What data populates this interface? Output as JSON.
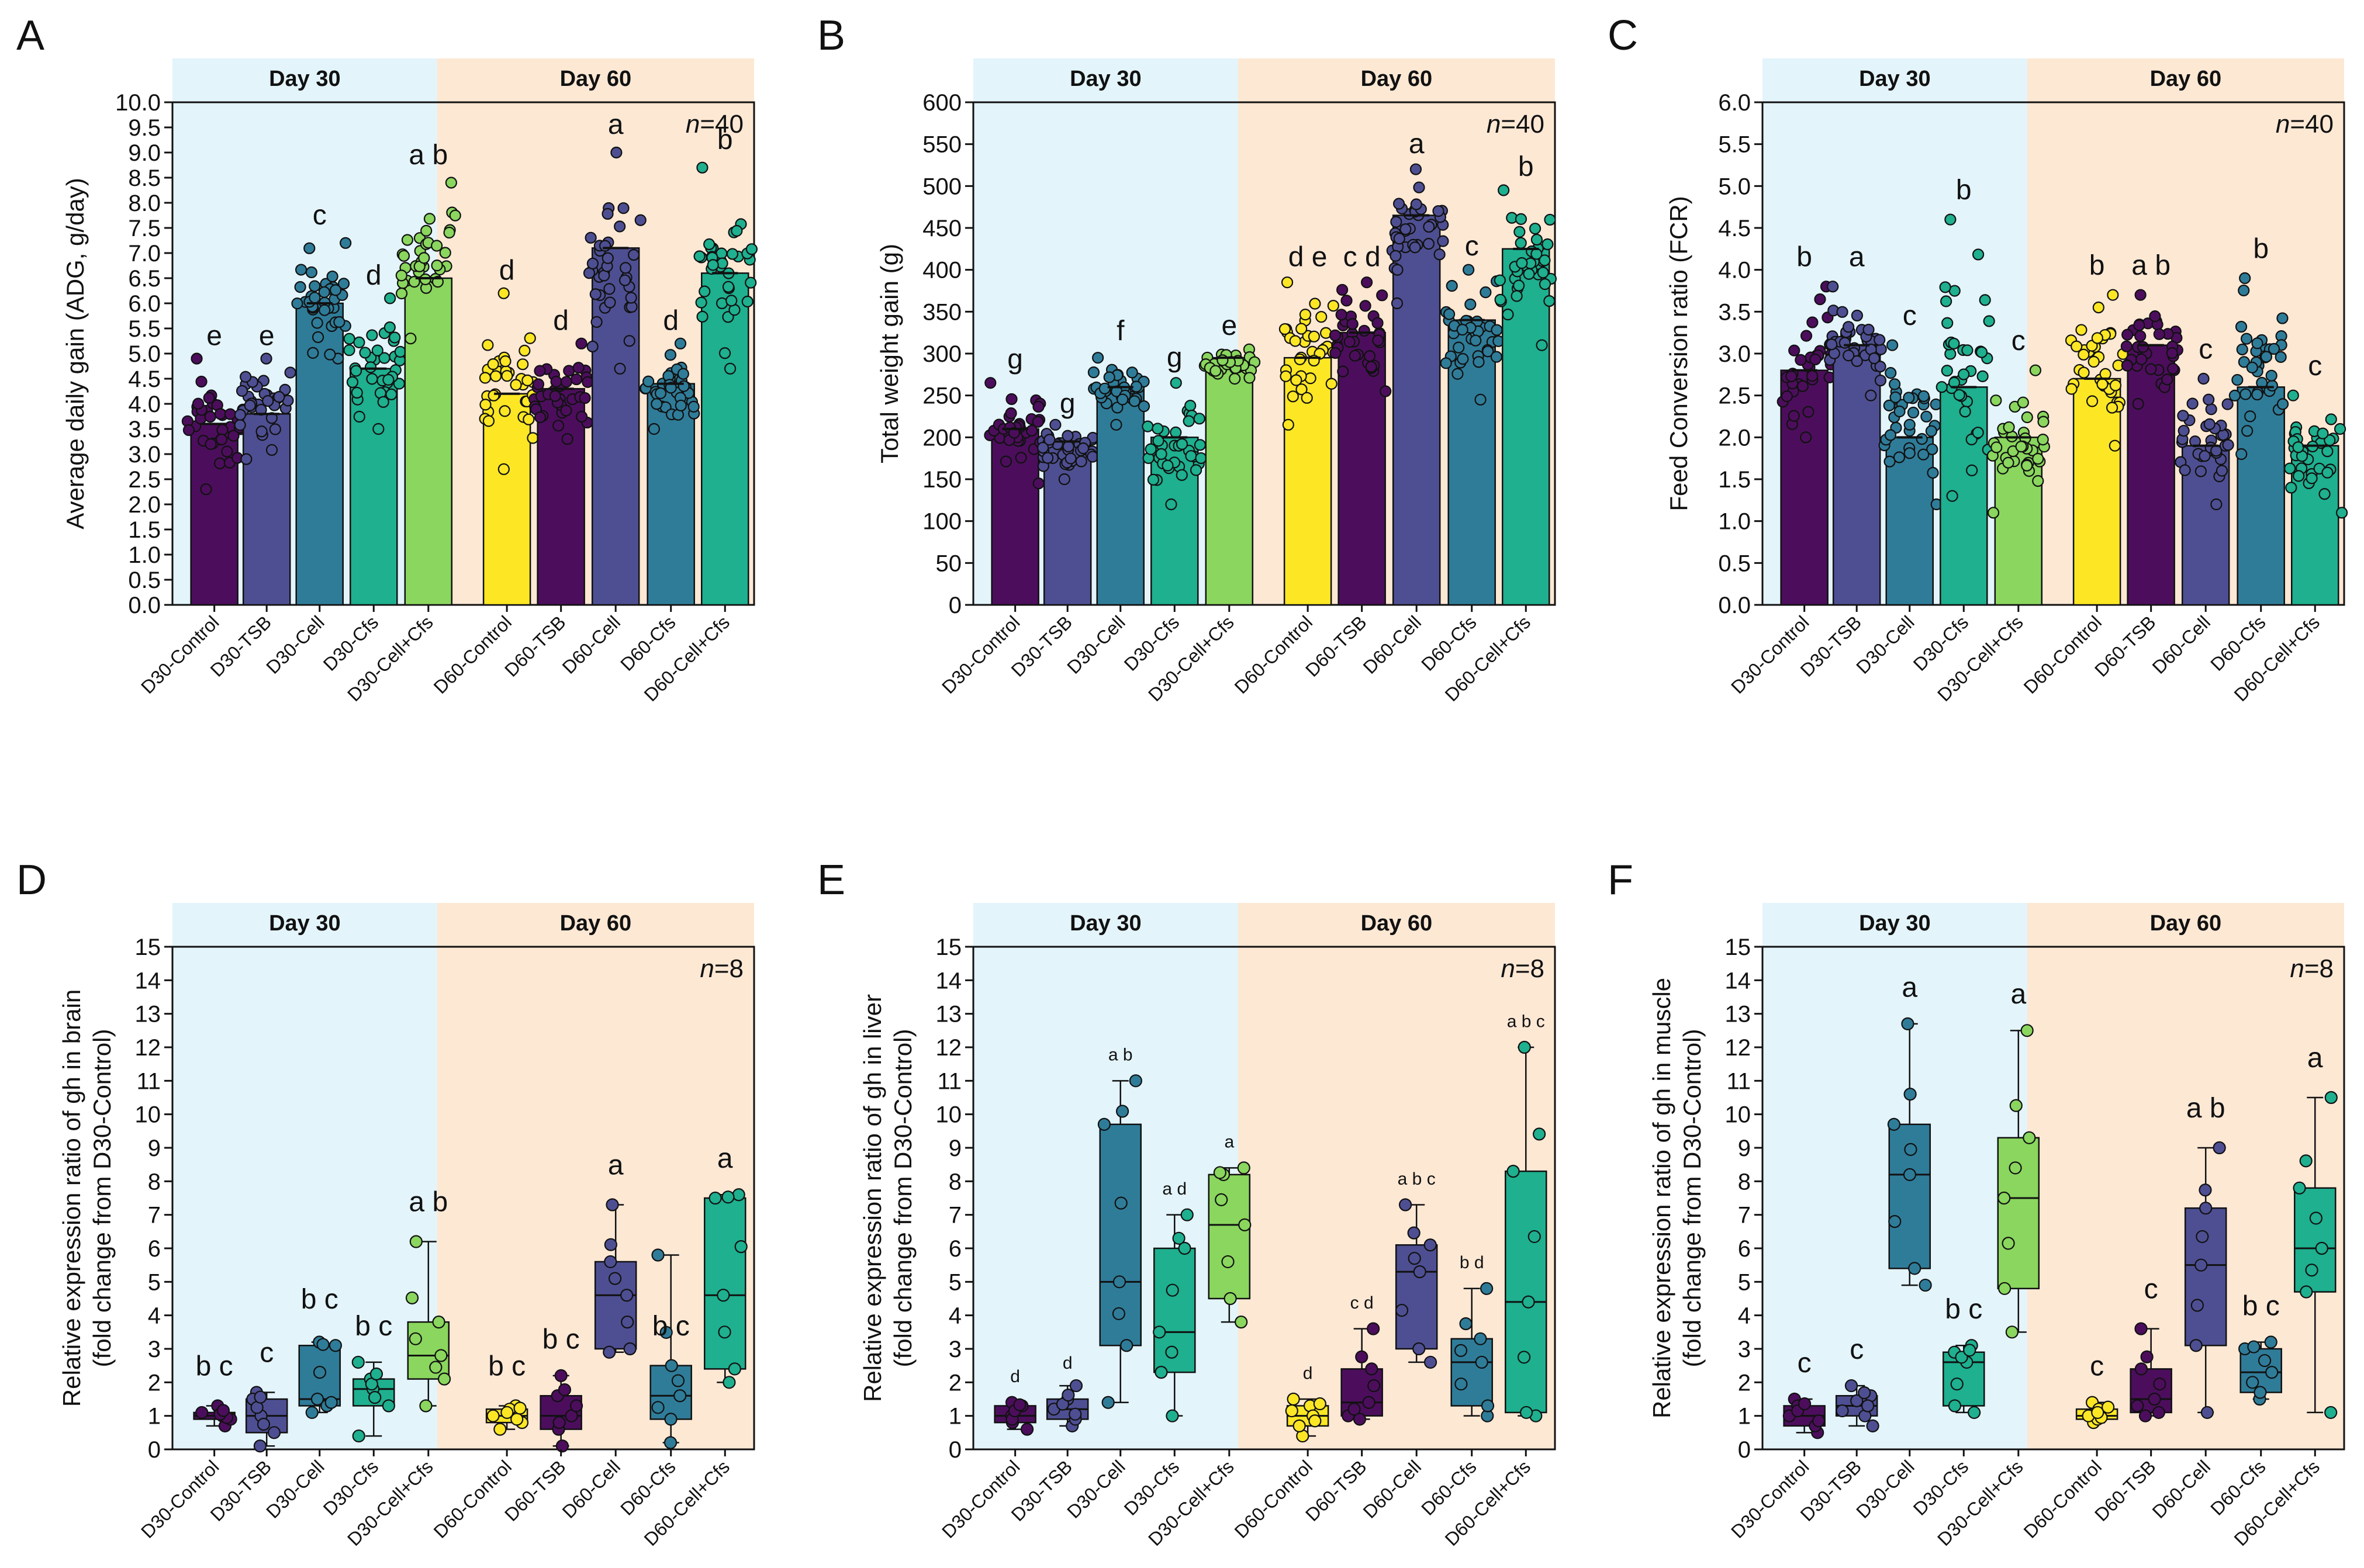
{
  "figure": {
    "panel_labels": [
      "A",
      "B",
      "C",
      "D",
      "E",
      "F"
    ]
  },
  "colors": {
    "day30_bg": "#e3f4fb",
    "day60_bg": "#fde8d4",
    "group_colors": [
      "#4c0e5c",
      "#4e4f92",
      "#2f7c99",
      "#1eb08f",
      "#8ad65e",
      "#fde725",
      "#4c0e5c",
      "#4e4f92",
      "#2f7c99",
      "#1eb08f"
    ]
  },
  "chart_data": [
    {
      "panel": "A",
      "type": "bar",
      "title": "",
      "header_labels": [
        "Day 30",
        "Day 60"
      ],
      "n_label": "n=40",
      "ylabel": "Average daily gain (ADG, g/day)",
      "ylabel_lines": [
        "Average daily gain (ADG, g/day)"
      ],
      "ylim": [
        0,
        10
      ],
      "yticks": [
        0,
        0.5,
        1,
        1.5,
        2,
        2.5,
        3,
        3.5,
        4,
        4.5,
        5,
        5.5,
        6,
        6.5,
        7,
        7.5,
        8,
        8.5,
        9,
        9.5,
        10
      ],
      "ytick_labels": [
        "0.0",
        "0.5",
        "1.0",
        "1.5",
        "2.0",
        "2.5",
        "3.0",
        "3.5",
        "4.0",
        "4.5",
        "5.0",
        "5.5",
        "6.0",
        "6.5",
        "7.0",
        "7.5",
        "8.0",
        "8.5",
        "9.0",
        "9.5",
        "10.0"
      ],
      "categories": [
        "D30-Control",
        "D30-TSB",
        "D30-Cell",
        "D30-Cfs",
        "D30-Cell+Cfs",
        "D60-Control",
        "D60-TSB",
        "D60-Cell",
        "D60-Cfs",
        "D60-Cell+Cfs"
      ],
      "values": [
        3.6,
        3.8,
        6.0,
        4.7,
        6.5,
        4.2,
        4.3,
        7.1,
        4.4,
        6.6
      ],
      "spread": [
        [
          2.3,
          4.9
        ],
        [
          2.9,
          4.9
        ],
        [
          4.9,
          7.2
        ],
        [
          3.5,
          6.1
        ],
        [
          5.3,
          8.4
        ],
        [
          2.7,
          6.2
        ],
        [
          3.3,
          5.2
        ],
        [
          4.7,
          9.0
        ],
        [
          3.5,
          5.2
        ],
        [
          4.7,
          8.7
        ]
      ],
      "letters": [
        "e",
        "e",
        "c",
        "d",
        "a b",
        "d",
        "d",
        "a",
        "d",
        "b"
      ],
      "letter_values": [
        5.1,
        5.1,
        7.5,
        6.3,
        8.7,
        6.4,
        5.4,
        9.3,
        5.4,
        9.0
      ]
    },
    {
      "panel": "B",
      "type": "bar",
      "title": "",
      "header_labels": [
        "Day 30",
        "Day 60"
      ],
      "n_label": "n=40",
      "ylabel": "Total weight gain (g)",
      "ylabel_lines": [
        "Total weight gain (g)"
      ],
      "ylim": [
        0,
        600
      ],
      "yticks": [
        0,
        50,
        100,
        150,
        200,
        250,
        300,
        350,
        400,
        450,
        500,
        550,
        600
      ],
      "ytick_labels": [
        "0",
        "50",
        "100",
        "150",
        "200",
        "250",
        "300",
        "350",
        "400",
        "450",
        "500",
        "550",
        "600"
      ],
      "categories": [
        "D30-Control",
        "D30-TSB",
        "D30-Cell",
        "D30-Cfs",
        "D30-Cell+Cfs",
        "D60-Control",
        "D60-TSB",
        "D60-Cell",
        "D60-Cfs",
        "D60-Cell+Cfs"
      ],
      "values": [
        210,
        195,
        260,
        200,
        295,
        295,
        325,
        465,
        340,
        425
      ],
      "spread": [
        [
          145,
          265
        ],
        [
          150,
          215
        ],
        [
          215,
          295
        ],
        [
          120,
          265
        ],
        [
          270,
          305
        ],
        [
          215,
          385
        ],
        [
          255,
          385
        ],
        [
          360,
          520
        ],
        [
          245,
          400
        ],
        [
          310,
          495
        ]
      ],
      "letters": [
        "g",
        "g",
        "f",
        "g",
        "e",
        "d e",
        "c d",
        "a",
        "c",
        "b"
      ],
      "letter_values": [
        278,
        225,
        312,
        280,
        318,
        400,
        400,
        535,
        413,
        508
      ]
    },
    {
      "panel": "C",
      "type": "bar",
      "title": "",
      "header_labels": [
        "Day 30",
        "Day 60"
      ],
      "n_label": "n=40",
      "ylabel": "Feed Conversion ratio (FCR)",
      "ylabel_lines": [
        "Feed Conversion ratio (FCR)"
      ],
      "ylim": [
        0,
        6
      ],
      "yticks": [
        0,
        0.5,
        1,
        1.5,
        2,
        2.5,
        3,
        3.5,
        4,
        4.5,
        5,
        5.5,
        6
      ],
      "ytick_labels": [
        "0.0",
        "0.5",
        "1.0",
        "1.5",
        "2.0",
        "2.5",
        "3.0",
        "3.5",
        "4.0",
        "4.5",
        "5.0",
        "5.5",
        "6.0"
      ],
      "categories": [
        "D30-Control",
        "D30-TSB",
        "D30-Cell",
        "D30-Cfs",
        "D30-Cell+Cfs",
        "D60-Control",
        "D60-TSB",
        "D60-Cell",
        "D60-Cfs",
        "D60-Cell+Cfs"
      ],
      "values": [
        2.8,
        3.1,
        2.0,
        2.6,
        2.0,
        2.7,
        3.1,
        1.9,
        2.6,
        1.9
      ],
      "spread": [
        [
          2.0,
          3.8
        ],
        [
          2.5,
          3.8
        ],
        [
          1.2,
          3.1
        ],
        [
          1.3,
          4.6
        ],
        [
          1.1,
          2.8
        ],
        [
          1.9,
          3.7
        ],
        [
          2.4,
          3.7
        ],
        [
          1.2,
          2.7
        ],
        [
          1.8,
          3.9
        ],
        [
          1.1,
          2.5
        ]
      ],
      "letters": [
        "b",
        "a",
        "c",
        "b",
        "c",
        "b",
        "a b",
        "c",
        "b",
        "c"
      ],
      "letter_values": [
        4.0,
        4.0,
        3.3,
        4.8,
        3.0,
        3.9,
        3.9,
        2.9,
        4.1,
        2.7
      ]
    },
    {
      "panel": "D",
      "type": "box",
      "title": "",
      "header_labels": [
        "Day 30",
        "Day 60"
      ],
      "n_label": "n=8",
      "ylabel": "Relative expression ratio of gh in brain (fold change from D30-Control)",
      "ylabel_lines": [
        "Relative expression ratio of gh in brain",
        "(fold change from D30-Control)"
      ],
      "ylim": [
        0,
        15
      ],
      "yticks": [
        0,
        1,
        2,
        3,
        4,
        5,
        6,
        7,
        8,
        9,
        10,
        11,
        12,
        13,
        14,
        15
      ],
      "ytick_labels": [
        "0",
        "1",
        "2",
        "3",
        "4",
        "5",
        "6",
        "7",
        "8",
        "9",
        "10",
        "11",
        "12",
        "13",
        "14",
        "15"
      ],
      "categories": [
        "D30-Control",
        "D30-TSB",
        "D30-Cell",
        "D30-Cfs",
        "D30-Cell+Cfs",
        "D60-Control",
        "D60-TSB",
        "D60-Cell",
        "D60-Cfs",
        "D60-Cell+Cfs"
      ],
      "boxes": [
        {
          "min": 0.7,
          "q1": 0.9,
          "median": 1.0,
          "q3": 1.1,
          "max": 1.3
        },
        {
          "min": 0.1,
          "q1": 0.5,
          "median": 1.0,
          "q3": 1.5,
          "max": 1.7
        },
        {
          "min": 1.1,
          "q1": 1.3,
          "median": 1.5,
          "q3": 3.1,
          "max": 3.2
        },
        {
          "min": 0.4,
          "q1": 1.3,
          "median": 1.8,
          "q3": 2.1,
          "max": 2.6
        },
        {
          "min": 1.3,
          "q1": 2.1,
          "median": 2.8,
          "q3": 3.8,
          "max": 6.2
        },
        {
          "min": 0.6,
          "q1": 0.8,
          "median": 1.0,
          "q3": 1.2,
          "max": 1.3
        },
        {
          "min": 0.1,
          "q1": 0.6,
          "median": 1.0,
          "q3": 1.6,
          "max": 2.2
        },
        {
          "min": 2.9,
          "q1": 3.0,
          "median": 4.6,
          "q3": 5.6,
          "max": 7.3
        },
        {
          "min": 0.2,
          "q1": 0.9,
          "median": 1.6,
          "q3": 2.5,
          "max": 5.8
        },
        {
          "min": 2.0,
          "q1": 2.4,
          "median": 4.6,
          "q3": 7.5,
          "max": 7.6
        }
      ],
      "letters": [
        "b c",
        "c",
        "b c",
        "b c",
        "a b",
        "b c",
        "b c",
        "a",
        "b c",
        "a"
      ],
      "letter_values": [
        2.1,
        2.5,
        4.1,
        3.3,
        7.0,
        2.1,
        2.9,
        8.1,
        3.3,
        8.3
      ]
    },
    {
      "panel": "E",
      "type": "box",
      "title": "",
      "header_labels": [
        "Day 30",
        "Day 60"
      ],
      "n_label": "n=8",
      "ylabel": "Relative expression ratio of gh in liver (fold change from D30-Control)",
      "ylabel_lines": [
        "Relative expression ratio of gh in liver",
        "(fold change from D30-Control)"
      ],
      "ylim": [
        0,
        15
      ],
      "yticks": [
        0,
        1,
        2,
        3,
        4,
        5,
        6,
        7,
        8,
        9,
        10,
        11,
        12,
        13,
        14,
        15
      ],
      "ytick_labels": [
        "0",
        "1",
        "2",
        "3",
        "4",
        "5",
        "6",
        "7",
        "8",
        "9",
        "10",
        "11",
        "12",
        "13",
        "14",
        "15"
      ],
      "categories": [
        "D30-Control",
        "D30-TSB",
        "D30-Cell",
        "D30-Cfs",
        "D30-Cell+Cfs",
        "D60-Control",
        "D60-TSB",
        "D60-Cell",
        "D60-Cfs",
        "D60-Cell+Cfs"
      ],
      "boxes": [
        {
          "min": 0.6,
          "q1": 0.8,
          "median": 1.0,
          "q3": 1.3,
          "max": 1.4
        },
        {
          "min": 0.7,
          "q1": 0.9,
          "median": 1.2,
          "q3": 1.5,
          "max": 1.9
        },
        {
          "min": 1.4,
          "q1": 3.1,
          "median": 5.0,
          "q3": 9.7,
          "max": 11.0
        },
        {
          "min": 1.0,
          "q1": 2.3,
          "median": 3.5,
          "q3": 6.0,
          "max": 7.0
        },
        {
          "min": 3.8,
          "q1": 4.5,
          "median": 6.7,
          "q3": 8.2,
          "max": 8.4
        },
        {
          "min": 0.4,
          "q1": 0.7,
          "median": 1.0,
          "q3": 1.3,
          "max": 1.5
        },
        {
          "min": 0.9,
          "q1": 1.0,
          "median": 1.4,
          "q3": 2.4,
          "max": 3.6
        },
        {
          "min": 2.6,
          "q1": 3.0,
          "median": 5.3,
          "q3": 6.1,
          "max": 7.3
        },
        {
          "min": 1.0,
          "q1": 1.3,
          "median": 2.6,
          "q3": 3.3,
          "max": 4.8
        },
        {
          "min": 1.0,
          "q1": 1.1,
          "median": 4.4,
          "q3": 8.3,
          "max": 12.0
        }
      ],
      "letters": [
        "d",
        "d",
        "a b",
        "a d",
        "a",
        "d",
        "c d",
        "a b c",
        "b d",
        "a b c"
      ],
      "letter_values": [
        1.9,
        2.3,
        11.5,
        7.5,
        8.9,
        2.0,
        4.1,
        7.8,
        5.3,
        12.5
      ]
    },
    {
      "panel": "F",
      "type": "box",
      "title": "",
      "header_labels": [
        "Day 30",
        "Day 60"
      ],
      "n_label": "n=8",
      "ylabel": "Relative expression ratio of gh in muscle (fold change from D30-Control)",
      "ylabel_lines": [
        "Relative expression ratio of gh in muscle",
        "(fold change from D30-Control)"
      ],
      "ylim": [
        0,
        15
      ],
      "yticks": [
        0,
        1,
        2,
        3,
        4,
        5,
        6,
        7,
        8,
        9,
        10,
        11,
        12,
        13,
        14,
        15
      ],
      "ytick_labels": [
        "0",
        "1",
        "2",
        "3",
        "4",
        "5",
        "6",
        "7",
        "8",
        "9",
        "10",
        "11",
        "12",
        "13",
        "14",
        "15"
      ],
      "categories": [
        "D30-Control",
        "D30-TSB",
        "D30-Cell",
        "D30-Cfs",
        "D30-Cell+Cfs",
        "D60-Control",
        "D60-TSB",
        "D60-Cell",
        "D60-Cfs",
        "D60-Cell+Cfs"
      ],
      "boxes": [
        {
          "min": 0.5,
          "q1": 0.7,
          "median": 1.0,
          "q3": 1.3,
          "max": 1.5
        },
        {
          "min": 0.7,
          "q1": 1.0,
          "median": 1.3,
          "q3": 1.6,
          "max": 1.9
        },
        {
          "min": 4.9,
          "q1": 5.4,
          "median": 8.2,
          "q3": 9.7,
          "max": 12.7
        },
        {
          "min": 1.1,
          "q1": 1.3,
          "median": 2.6,
          "q3": 2.9,
          "max": 3.1
        },
        {
          "min": 3.5,
          "q1": 4.8,
          "median": 7.5,
          "q3": 9.3,
          "max": 12.5
        },
        {
          "min": 0.8,
          "q1": 0.9,
          "median": 1.0,
          "q3": 1.2,
          "max": 1.4
        },
        {
          "min": 1.0,
          "q1": 1.1,
          "median": 1.5,
          "q3": 2.4,
          "max": 3.6
        },
        {
          "min": 1.1,
          "q1": 3.1,
          "median": 5.5,
          "q3": 7.2,
          "max": 9.0
        },
        {
          "min": 1.5,
          "q1": 1.7,
          "median": 2.3,
          "q3": 3.0,
          "max": 3.2
        },
        {
          "min": 1.1,
          "q1": 4.7,
          "median": 6.0,
          "q3": 7.8,
          "max": 10.5
        }
      ],
      "letters": [
        "c",
        "c",
        "a",
        "b c",
        "a",
        "c",
        "c",
        "a b",
        "b c",
        "a"
      ],
      "letter_values": [
        2.2,
        2.6,
        13.4,
        3.8,
        13.2,
        2.1,
        4.4,
        9.8,
        3.9,
        11.3
      ]
    }
  ]
}
